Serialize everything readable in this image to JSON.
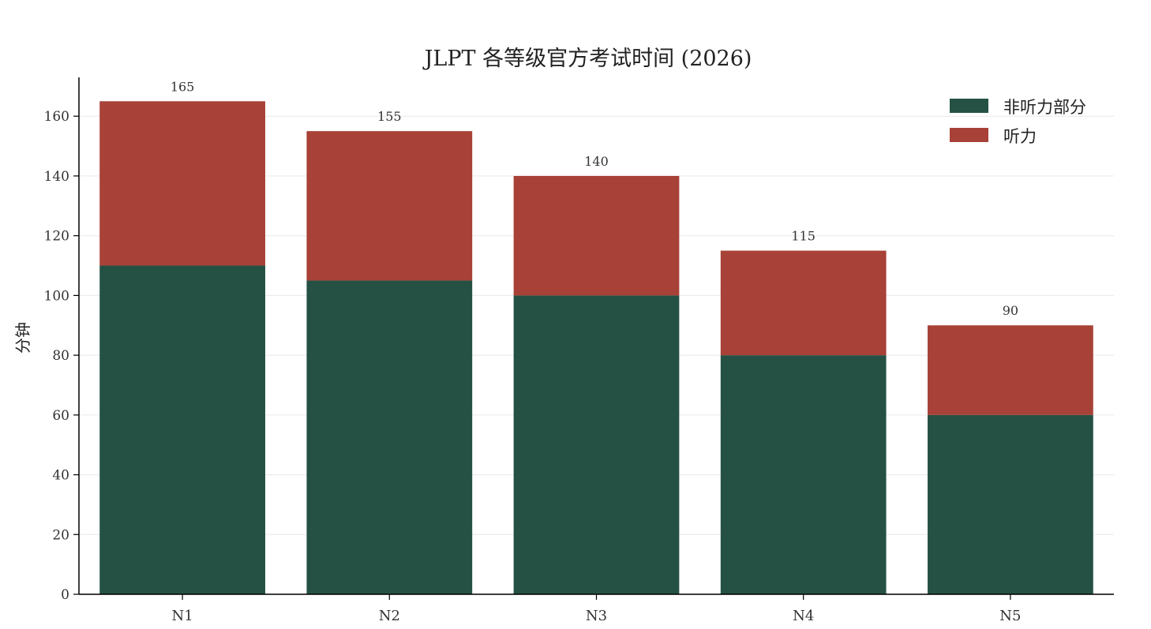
{
  "chart_data": {
    "type": "bar",
    "stacked": true,
    "title": "JLPT 各等级官方考试时间 (2026)",
    "xlabel": "",
    "ylabel": "分钟",
    "categories": [
      "N1",
      "N2",
      "N3",
      "N4",
      "N5"
    ],
    "series": [
      {
        "name": "非听力部分",
        "values": [
          110,
          105,
          100,
          80,
          60
        ],
        "color": "#255144"
      },
      {
        "name": "听力",
        "values": [
          55,
          50,
          40,
          35,
          30
        ],
        "color": "#a84137"
      }
    ],
    "totals": [
      "165",
      "155",
      "140",
      "115",
      "90"
    ],
    "ylim": [
      0,
      173
    ],
    "yticks": [
      "0",
      "20",
      "40",
      "60",
      "80",
      "100",
      "120",
      "140",
      "160"
    ],
    "grid": "horizontal",
    "legend_position": "top-right"
  }
}
